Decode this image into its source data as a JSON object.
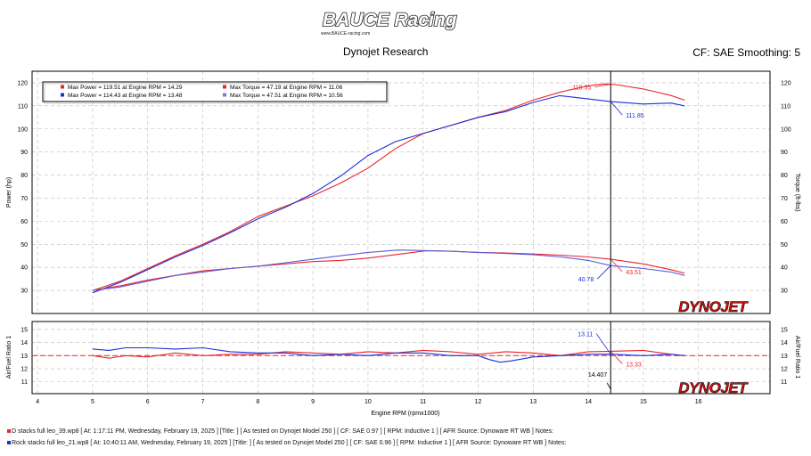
{
  "header": {
    "logo_text": "BAUCE Racing",
    "logo_url": "www.BAUCE-racing.com",
    "title": "Dynojet Research",
    "right_info": "CF: SAE Smoothing: 5"
  },
  "colors": {
    "red": "#e8262a",
    "blue": "#1a2fd6",
    "cursor": "#000000",
    "grid": "#bdbdbd"
  },
  "legend": [
    "Max Power = 119.51 at Engine RPM = 14.29",
    "Max Torque = 47.19 at Engine RPM = 11.06",
    "Max Power = 114.43 at Engine RPM = 13.48",
    "Max Torque = 47.51 at Engine RPM = 10.56"
  ],
  "brand_mark": "DYNOJET",
  "runs": [
    "D stacks full leo_39.wp8 [ At:  1:17:11 PM, Wednesday, February 19, 2025 ] [Title:  ]  [ As tested on Dynojet Model 250 ]  [ CF: SAE 0.97 ]  [ RPM:  Inductive 1 ]  [ AFR Source: Dynoware RT WB ]  Notes:",
    "Rock stacks full leo_21.wp8 [ At:  10:40:11 AM, Wednesday, February 19, 2025 ] [Title:  ]  [ As tested on Dynojet Model 250 ]  [ CF: SAE 0.96 ]  [ RPM:  Inductive 1 ]  [ AFR Source: Dynoware RT WB ]  Notes:"
  ],
  "chart_data": [
    {
      "type": "line",
      "title": "",
      "xlabel": "Engine RPM (rpmx1000)",
      "ylabel": "Power (hp)",
      "y2label": "Torque (ft-lbs)",
      "xlim": [
        3.9,
        17.3
      ],
      "ylim": [
        20,
        125
      ],
      "x_ticks": [
        4,
        5,
        6,
        7,
        8,
        9,
        10,
        11,
        12,
        13,
        14,
        15,
        16
      ],
      "y_ticks": [
        30,
        40,
        50,
        60,
        70,
        80,
        90,
        100,
        110,
        120
      ],
      "grid": true,
      "cursor_x": 14.407,
      "series": [
        {
          "name": "Max Power = 119.51 at Engine RPM = 14.29",
          "color": "red",
          "kind": "power",
          "x": [
            5.0,
            5.5,
            6.0,
            6.5,
            7.0,
            7.5,
            8.0,
            8.5,
            9.0,
            9.5,
            10.0,
            10.5,
            11.0,
            11.5,
            12.0,
            12.5,
            13.0,
            13.5,
            14.0,
            14.29,
            14.5,
            15.0,
            15.5,
            15.75
          ],
          "y": [
            30.0,
            34.0,
            39.5,
            45.0,
            50.0,
            55.5,
            62.0,
            66.5,
            71.0,
            76.5,
            83.0,
            91.5,
            98.0,
            101.5,
            105.0,
            108.0,
            112.5,
            116.0,
            118.7,
            119.51,
            119.2,
            117.3,
            114.5,
            112.5
          ]
        },
        {
          "name": "Max Power = 114.43 at Engine RPM = 13.48",
          "color": "blue",
          "kind": "power",
          "x": [
            5.0,
            5.5,
            6.0,
            6.5,
            7.0,
            7.5,
            8.0,
            8.5,
            9.0,
            9.5,
            10.0,
            10.5,
            11.0,
            11.5,
            12.0,
            12.5,
            13.0,
            13.48,
            14.0,
            14.407,
            15.0,
            15.5,
            15.75
          ],
          "y": [
            29.0,
            33.5,
            39.0,
            44.5,
            49.5,
            55.0,
            61.0,
            66.0,
            72.0,
            79.5,
            88.5,
            94.5,
            98.0,
            101.5,
            105.0,
            107.5,
            111.5,
            114.43,
            113.0,
            111.85,
            110.8,
            111.2,
            110.0
          ]
        },
        {
          "name": "Max Torque = 47.19 at Engine RPM = 11.06",
          "color": "red",
          "kind": "torque",
          "x": [
            5.0,
            5.5,
            6.0,
            6.5,
            7.0,
            7.5,
            8.0,
            8.5,
            9.0,
            9.5,
            10.0,
            10.5,
            11.06,
            11.5,
            12.0,
            12.5,
            13.0,
            13.5,
            14.0,
            14.407,
            15.0,
            15.5,
            15.75
          ],
          "y": [
            30.0,
            32.0,
            34.5,
            36.5,
            38.5,
            39.5,
            40.5,
            41.5,
            42.5,
            43.0,
            44.0,
            45.5,
            47.19,
            47.0,
            46.5,
            46.2,
            45.8,
            45.3,
            44.5,
            43.51,
            41.5,
            39.0,
            37.5
          ]
        },
        {
          "name": "Max Torque = 47.51 at Engine RPM = 10.56",
          "color": "blue",
          "kind": "torque",
          "x": [
            5.0,
            5.5,
            6.0,
            6.5,
            7.0,
            7.5,
            8.0,
            8.5,
            9.0,
            9.5,
            10.0,
            10.56,
            11.0,
            11.5,
            12.0,
            12.5,
            13.0,
            13.5,
            14.0,
            14.407,
            15.0,
            15.5,
            15.75
          ],
          "y": [
            30.0,
            31.5,
            34.0,
            36.5,
            38.0,
            39.5,
            40.5,
            42.0,
            43.5,
            45.0,
            46.5,
            47.51,
            47.3,
            47.0,
            46.5,
            46.0,
            45.5,
            44.5,
            43.0,
            40.78,
            39.5,
            38.0,
            36.5
          ]
        }
      ],
      "annotations": [
        {
          "text": "119.35",
          "x": 14.407,
          "y": 119.35,
          "color": "red"
        },
        {
          "text": "111.85",
          "x": 14.407,
          "y": 111.85,
          "color": "blue"
        },
        {
          "text": "40.78",
          "x": 14.407,
          "y": 40.78,
          "color": "blue"
        },
        {
          "text": "43.51",
          "x": 14.407,
          "y": 43.51,
          "color": "red"
        }
      ]
    },
    {
      "type": "line",
      "title": "",
      "xlabel": "Engine RPM (rpmx1000)",
      "ylabel": "Air/Fuel Ratio 1",
      "y2label": "Air/Fuel Ratio 1",
      "xlim": [
        3.9,
        17.3
      ],
      "ylim": [
        10.1,
        15.6
      ],
      "x_ticks": [
        4,
        5,
        6,
        7,
        8,
        9,
        10,
        11,
        12,
        13,
        14,
        15,
        16
      ],
      "y_ticks": [
        11,
        12,
        13,
        14,
        15
      ],
      "grid": true,
      "reference_y": 13.0,
      "cursor_x": 14.407,
      "cursor_label": "14.407",
      "series": [
        {
          "name": "D stacks full leo_39.wp8",
          "color": "red",
          "x": [
            5.0,
            5.3,
            5.6,
            6.0,
            6.5,
            7.0,
            7.5,
            8.0,
            8.5,
            9.0,
            9.5,
            10.0,
            10.5,
            11.0,
            11.5,
            12.0,
            12.5,
            13.0,
            13.5,
            14.0,
            14.407,
            15.0,
            15.5,
            15.75
          ],
          "y": [
            13.0,
            12.8,
            13.0,
            12.9,
            13.2,
            13.0,
            13.1,
            13.1,
            13.3,
            13.2,
            13.1,
            13.3,
            13.2,
            13.4,
            13.3,
            13.1,
            13.3,
            13.2,
            13.0,
            13.3,
            13.33,
            13.4,
            13.1,
            13.0
          ]
        },
        {
          "name": "Rock stacks full leo_21.wp8",
          "color": "blue",
          "x": [
            5.0,
            5.3,
            5.6,
            6.0,
            6.5,
            7.0,
            7.5,
            8.0,
            8.5,
            9.0,
            9.5,
            10.0,
            10.5,
            11.0,
            11.5,
            12.0,
            12.2,
            12.4,
            12.6,
            13.0,
            13.5,
            14.0,
            14.407,
            15.0,
            15.5,
            15.75
          ],
          "y": [
            13.5,
            13.4,
            13.6,
            13.6,
            13.5,
            13.6,
            13.3,
            13.2,
            13.2,
            13.0,
            13.1,
            13.0,
            13.2,
            13.2,
            13.0,
            13.0,
            12.7,
            12.5,
            12.6,
            12.9,
            13.0,
            13.1,
            13.11,
            13.0,
            13.1,
            13.0
          ]
        }
      ],
      "annotations": [
        {
          "text": "13.11",
          "x": 14.407,
          "y": 13.11,
          "color": "blue"
        },
        {
          "text": "13.33",
          "x": 14.407,
          "y": 13.33,
          "color": "red"
        }
      ]
    }
  ]
}
